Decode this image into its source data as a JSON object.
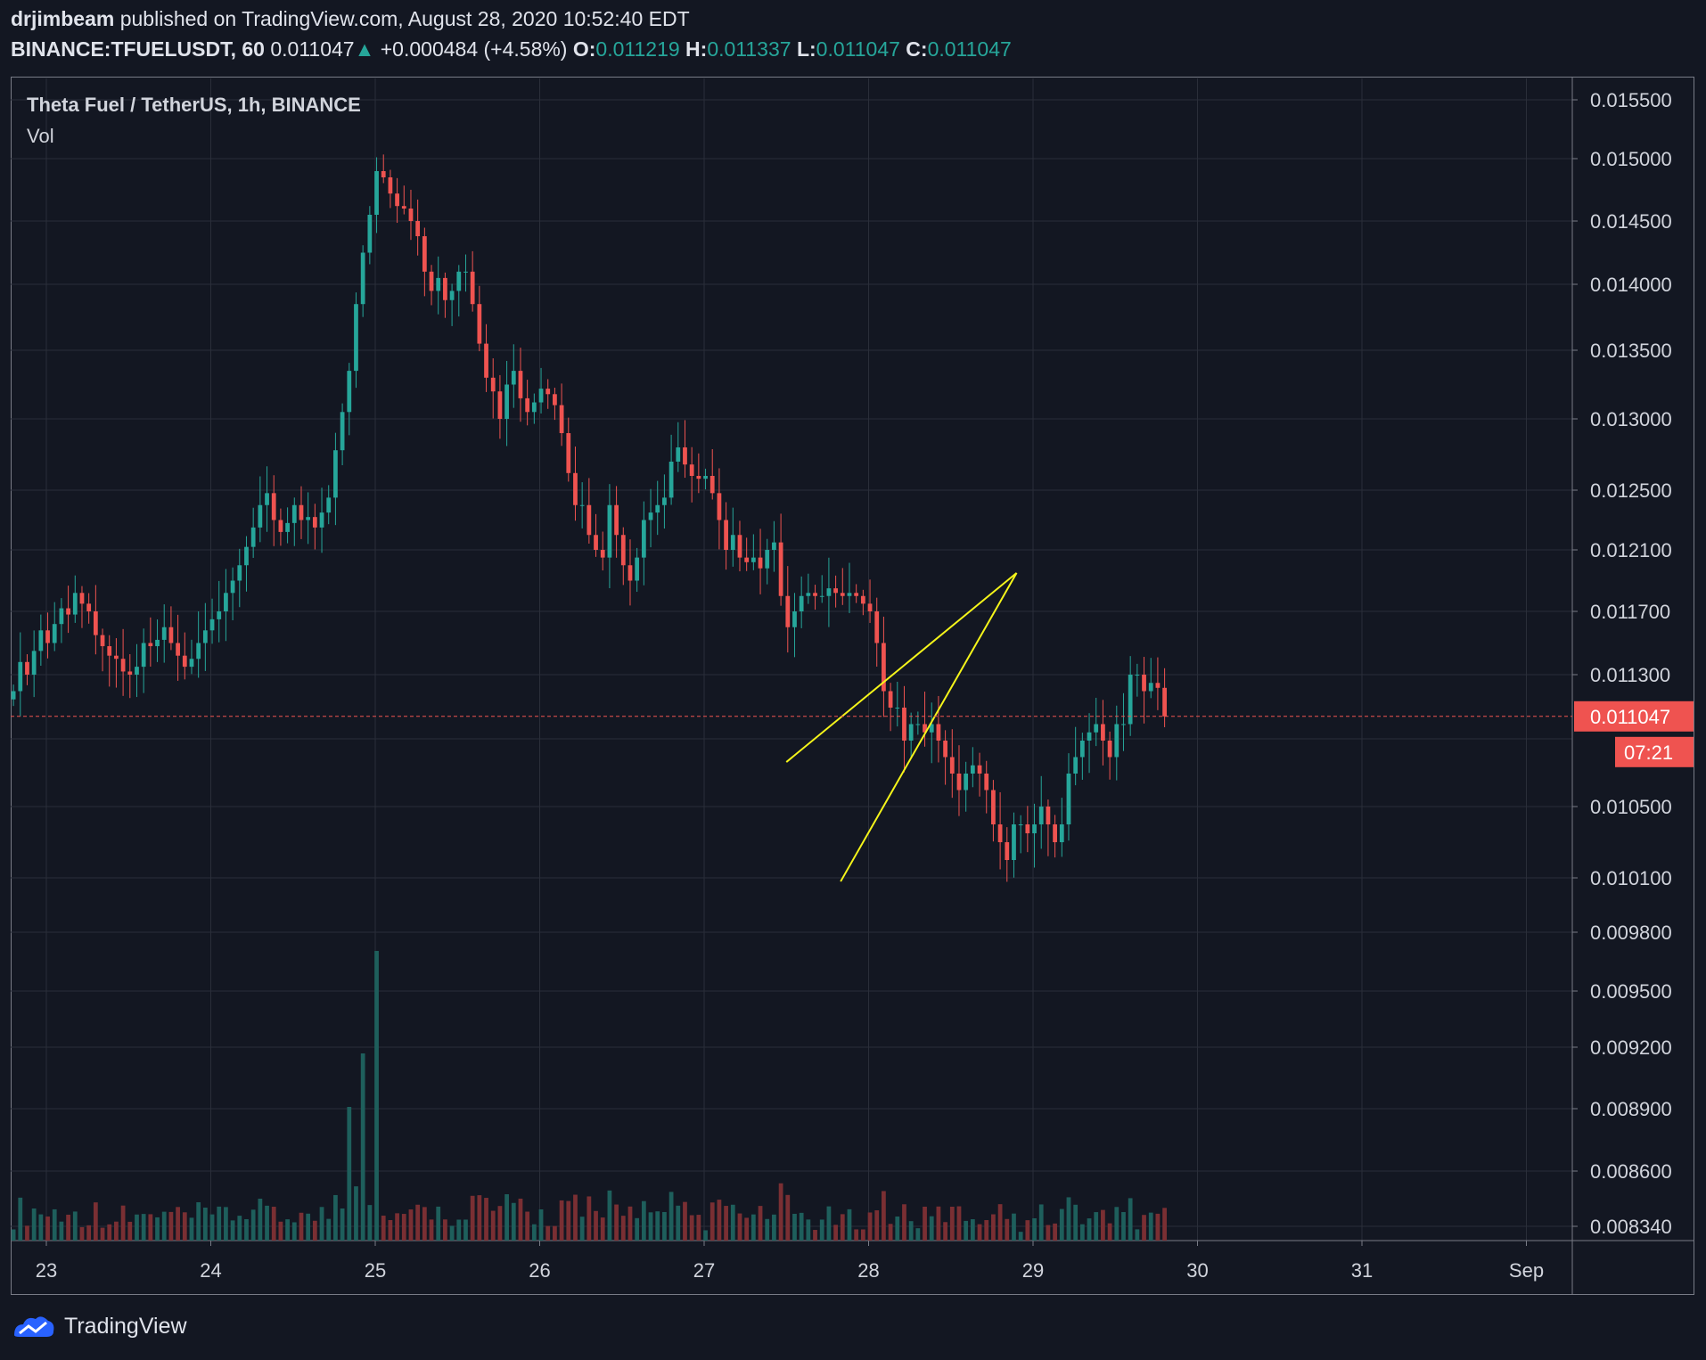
{
  "header": {
    "author": "drjimbeam",
    "published_text": "published on TradingView.com, August 28, 2020 10:52:40 EDT",
    "symbol": "BINANCE:TFUELUSDT, 60",
    "last": "0.011047",
    "change_arrow": "▲",
    "change": "+0.000484 (+4.58%)",
    "o_label": "O:",
    "o_value": "0.011219",
    "h_label": "H:",
    "h_value": "0.011337",
    "l_label": "L:",
    "l_value": "0.011047",
    "c_label": "C:",
    "c_value": "0.011047"
  },
  "legend": {
    "title": "Theta Fuel / TetherUS, 1h, BINANCE",
    "volume": "Vol"
  },
  "footer": {
    "brand": "TradingView"
  },
  "colors": {
    "background": "#131722",
    "grid": "#2a2e39",
    "up": "#26a69a",
    "down": "#ef5350",
    "up_volume": "#1e5f5c",
    "down_volume": "#7a2f33",
    "trendline": "#f5f51a",
    "price_line": "#ef5350",
    "axis_text": "#d1d4dc"
  },
  "chart_data": {
    "type": "candlestick",
    "title": "Theta Fuel / TetherUS, 1h, BINANCE",
    "y_axis_ticks": [
      0.0155,
      0.015,
      0.0145,
      0.014,
      0.0135,
      0.013,
      0.0125,
      0.0121,
      0.0117,
      0.0113,
      0.0105,
      0.0101,
      0.0098,
      0.0095,
      0.0092,
      0.0089,
      0.0086,
      0.00834
    ],
    "y_axis_labels": [
      "0.015500",
      "0.015000",
      "0.014500",
      "0.014000",
      "0.013500",
      "0.013000",
      "0.012500",
      "0.012100",
      "0.011700",
      "0.011300",
      "0.010500",
      "0.010100",
      "0.009800",
      "0.009500",
      "0.009200",
      "0.008900",
      "0.008600",
      "0.008340"
    ],
    "x_axis_labels": [
      "23",
      "24",
      "25",
      "26",
      "27",
      "28",
      "29",
      "30",
      "31",
      "Sep"
    ],
    "x_day_positions": [
      0,
      1,
      2,
      3,
      4,
      5,
      6,
      7,
      8,
      9
    ],
    "data_start_day": -0.2,
    "hours_per_day": 24,
    "last_price": 0.011047,
    "last_price_label": "0.011047",
    "countdown_label": "07:21",
    "series": [
      {
        "name": "TFUELUSDT close (approx.)",
        "values": [
          0.0112,
          0.01138,
          0.0113,
          0.01145,
          0.01158,
          0.0115,
          0.01162,
          0.01172,
          0.01168,
          0.01182,
          0.01175,
          0.0117,
          0.01155,
          0.01148,
          0.01142,
          0.0114,
          0.01132,
          0.0113,
          0.01135,
          0.0115,
          0.01148,
          0.01152,
          0.0116,
          0.0115,
          0.01142,
          0.01135,
          0.0114,
          0.0115,
          0.01158,
          0.01165,
          0.0117,
          0.01182,
          0.0119,
          0.012,
          0.01212,
          0.01225,
          0.0124,
          0.01248,
          0.0123,
          0.01222,
          0.01228,
          0.0124,
          0.0123,
          0.01232,
          0.01225,
          0.01235,
          0.01245,
          0.01278,
          0.01305,
          0.01335,
          0.01385,
          0.01425,
          0.01455,
          0.0149,
          0.01485,
          0.01472,
          0.01462,
          0.0146,
          0.0145,
          0.01438,
          0.0141,
          0.01395,
          0.01405,
          0.01388,
          0.01395,
          0.0141,
          0.0141,
          0.01385,
          0.01355,
          0.0133,
          0.0132,
          0.013,
          0.01325,
          0.01335,
          0.01315,
          0.01305,
          0.01312,
          0.01322,
          0.01318,
          0.0131,
          0.0129,
          0.01262,
          0.0124,
          0.0124,
          0.0122,
          0.0121,
          0.01205,
          0.0124,
          0.0122,
          0.012,
          0.0119,
          0.01205,
          0.0123,
          0.01235,
          0.0124,
          0.01245,
          0.0127,
          0.0128,
          0.01268,
          0.0126,
          0.01258,
          0.0126,
          0.01248,
          0.0123,
          0.0121,
          0.0122,
          0.01205,
          0.01202,
          0.01205,
          0.01198,
          0.0121,
          0.01215,
          0.0118,
          0.0116,
          0.0117,
          0.0118,
          0.01182,
          0.0118,
          0.0118,
          0.01185,
          0.01182,
          0.0118,
          0.01182,
          0.0118,
          0.01175,
          0.0117,
          0.0115,
          0.0112,
          0.0111,
          0.0111,
          0.0109,
          0.011,
          0.011,
          0.01095,
          0.011,
          0.0109,
          0.0108,
          0.0107,
          0.0106,
          0.0107,
          0.01075,
          0.0107,
          0.0106,
          0.0104,
          0.0103,
          0.0102,
          0.0104,
          0.0104,
          0.01035,
          0.0104,
          0.0105,
          0.0104,
          0.0103,
          0.0104,
          0.0107,
          0.0108,
          0.0109,
          0.01095,
          0.011,
          0.0109,
          0.0108,
          0.011,
          0.011,
          0.0113,
          0.0113,
          0.0112,
          0.01125,
          0.01122,
          0.011047
        ]
      }
    ],
    "trendline_a": {
      "from": {
        "day": 4.5,
        "price": 0.01077
      },
      "to": {
        "day": 5.9,
        "price": 0.01195
      }
    },
    "trendline_b": {
      "from": {
        "day": 4.83,
        "price": 0.01008
      },
      "to": {
        "day": 5.9,
        "price": 0.01195
      }
    }
  }
}
